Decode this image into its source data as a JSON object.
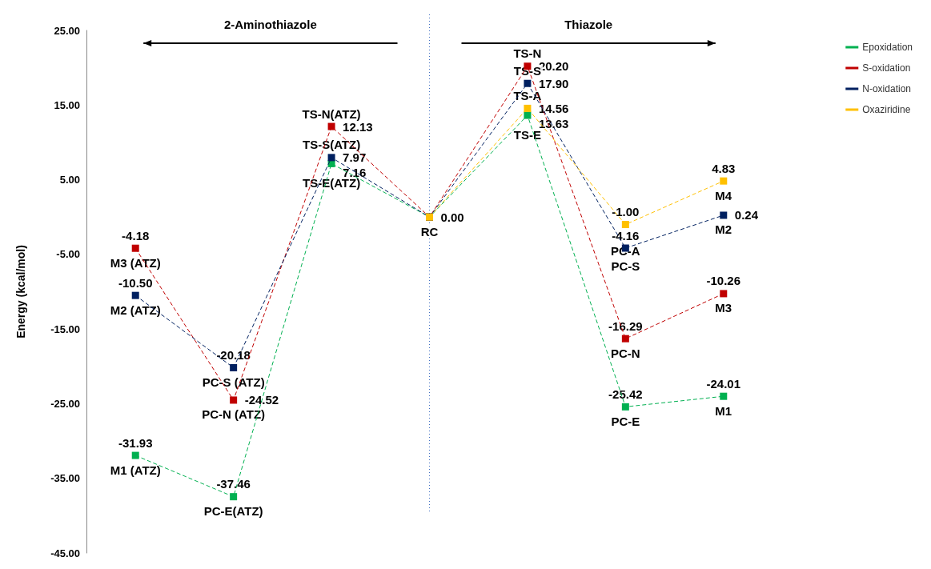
{
  "chart_data": {
    "type": "line",
    "ylabel": "Energy (kcal/mol)",
    "categories": [
      null,
      null,
      null,
      null,
      null,
      null,
      null
    ],
    "series": [
      {
        "name": "Epoxidation",
        "color": "#00b050",
        "values": [
          -31.93,
          -37.46,
          7.16,
          0,
          13.63,
          -25.42,
          -24.01
        ],
        "value_labels": [
          "-31.93",
          "-37.46",
          "7.16",
          "0.00",
          "13.63",
          "-25.42",
          "-24.01"
        ]
      },
      {
        "name": "S-oxidation",
        "color": "#c00000",
        "values": [
          -4.18,
          -24.52,
          12.13,
          0,
          20.2,
          -16.29,
          -10.26
        ],
        "value_labels": [
          "-4.18",
          "-24.52",
          "12.13",
          null,
          "20.20",
          "-16.29",
          "-10.26"
        ]
      },
      {
        "name": "N-oxidation",
        "color": "#002060",
        "values": [
          -10.5,
          -20.18,
          7.97,
          0,
          17.9,
          -4.16,
          0.24
        ],
        "value_labels": [
          "-10.50",
          "-20.18",
          "7.97",
          null,
          "17.90",
          "-4.16",
          "0.24"
        ]
      },
      {
        "name": "Oxaziridine",
        "color": "#ffc000",
        "values": [
          null,
          null,
          null,
          0,
          14.56,
          -1.0,
          4.83
        ],
        "value_labels": [
          null,
          null,
          null,
          null,
          "14.56",
          "-1.00",
          "4.83"
        ]
      }
    ],
    "ylim": [
      -45,
      25
    ],
    "yticks": [
      {
        "value": -45,
        "label": "-45.00"
      },
      {
        "value": -35,
        "label": "-35.00"
      },
      {
        "value": -25,
        "label": "-25.00"
      },
      {
        "value": -15,
        "label": "-15.00"
      },
      {
        "value": -5,
        "label": "-5.00"
      },
      {
        "value": 5,
        "label": "5.00"
      },
      {
        "value": 15,
        "label": "15.00"
      },
      {
        "value": 25,
        "label": "25.00"
      }
    ],
    "tick_labels": "y",
    "grid": false,
    "legend": "top right",
    "line_style": "dashed",
    "marker": "square",
    "annotations": [
      "2-Aminothiazole",
      "Thiazole",
      {
        "text": "M1 (ATZ)",
        "y": -31.93
      },
      {
        "text": "M3 (ATZ)",
        "y": -4.18
      },
      {
        "text": "M2 (ATZ)",
        "y": -10.5
      },
      {
        "text": "PC-E(ATZ)",
        "y": -37.46
      },
      {
        "text": "PC-N (ATZ)",
        "y": -24.52
      },
      {
        "text": "PC-S (ATZ)",
        "y": -20.18
      },
      {
        "text": "TS-N(ATZ)",
        "y": 12.13
      },
      {
        "text": "TS-S(ATZ)",
        "y": 7.97
      },
      {
        "text": "TS-E(ATZ)",
        "y": 7.16
      },
      {
        "text": "RC",
        "y": 0
      },
      {
        "text": "TS-N",
        "y": 20.2
      },
      {
        "text": "TS-S",
        "y": 17.9
      },
      {
        "text": "TS-A",
        "y": 14.56
      },
      {
        "text": "TS-E",
        "y": 13.63
      },
      {
        "text": "PC-A",
        "y": -1.0
      },
      {
        "text": "PC-S",
        "y": -4.16
      },
      {
        "text": "PC-N",
        "y": -16.29
      },
      {
        "text": "PC-E",
        "y": -25.42
      },
      {
        "text": "M4",
        "y": 4.83
      },
      {
        "text": "M2",
        "y": 0.24
      },
      {
        "text": "M3",
        "y": -10.26
      },
      {
        "text": "M1",
        "y": -24.01
      }
    ]
  }
}
